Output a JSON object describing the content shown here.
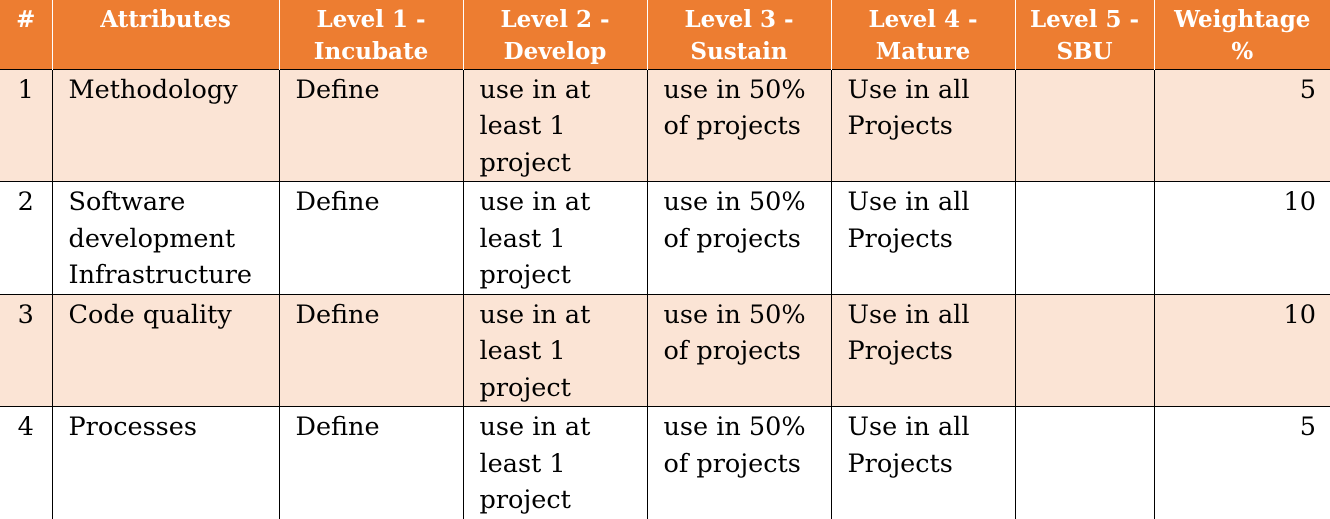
{
  "table": {
    "headers": [
      "#",
      "Attributes",
      "Level 1 - Incubate",
      "Level 2 - Develop",
      "Level 3 - Sustain",
      "Level 4 - Mature",
      "Level 5 - SBU",
      "Weightage %"
    ],
    "rows": [
      {
        "num": "1",
        "attribute": "Methodology",
        "level1": "Define",
        "level2": "use in at least 1 project",
        "level3": "use in 50% of projects",
        "level4": "Use in all Projects",
        "level5": "",
        "weightage": "5"
      },
      {
        "num": "2",
        "attribute": "Software development Infrastructure",
        "level1": "Define",
        "level2": "use in at least 1 project",
        "level3": "use in 50% of projects",
        "level4": "Use in all Projects",
        "level5": "",
        "weightage": "10"
      },
      {
        "num": "3",
        "attribute": "Code quality",
        "level1": "Define",
        "level2": "use in at least 1 project",
        "level3": "use in 50% of projects",
        "level4": "Use in all Projects",
        "level5": "",
        "weightage": "10"
      },
      {
        "num": "4",
        "attribute": "Processes",
        "level1": "Define",
        "level2": "use in at least 1 project",
        "level3": "use in 50% of projects",
        "level4": "Use in all Projects",
        "level5": "",
        "weightage": "5"
      }
    ]
  },
  "colors": {
    "header_bg": "#ed7d31",
    "header_text": "#ffffff",
    "shaded_row_bg": "#fbe4d5",
    "plain_row_bg": "#ffffff"
  }
}
